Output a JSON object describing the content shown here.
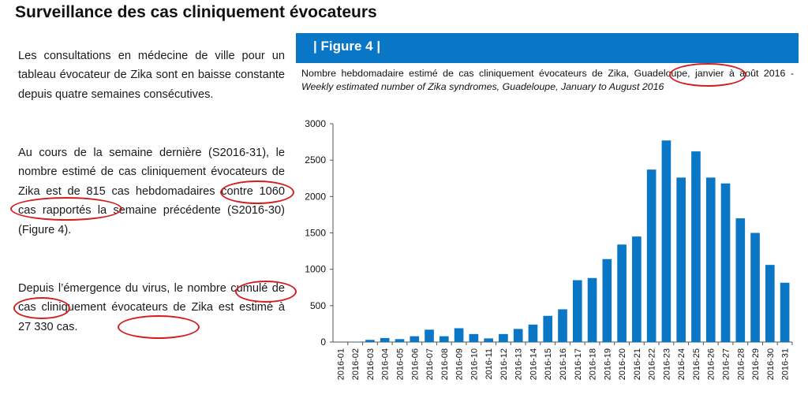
{
  "heading": "Surveillance des cas cliniquement évocateurs",
  "paragraphs": [
    "Les consultations en médecine de ville pour un tableau évocateur de Zika sont en baisse constante depuis quatre semaines consécutives.",
    "Au cours de la semaine dernière (S2016-31), le nombre estimé de cas cliniquement évocateurs de Zika est de 815 cas hebdomadaires contre 1060 cas rapportés la semaine précédente (S2016-30) (Figure 4).",
    "Depuis l’émergence du virus, le nombre cumulé de cas cliniquement évocateurs de Zika est estimé à 27 330 cas."
  ],
  "figure": {
    "label": "| Figure 4 |",
    "caption_fr": "Nombre hebdomadaire estimé de cas cliniquement évocateurs de Zika, Guadeloupe, janvier à août 2016 - ",
    "caption_en": "Weekly estimated number of Zika syndromes, Guadeloupe, January to August 2016"
  },
  "colors": {
    "banner": "#0a76c6",
    "bar": "#0a76c6",
    "annotation": "#d21e1e"
  },
  "chart_data": {
    "type": "bar",
    "categories": [
      "2016-01",
      "2016-02",
      "2016-03",
      "2016-04",
      "2016-05",
      "2016-06",
      "2016-07",
      "2016-08",
      "2016-09",
      "2016-10",
      "2016-11",
      "2016-12",
      "2016-13",
      "2016-14",
      "2016-15",
      "2016-16",
      "2016-17",
      "2016-18",
      "2016-19",
      "2016-20",
      "2016-21",
      "2016-22",
      "2016-23",
      "2016-24",
      "2016-25",
      "2016-26",
      "2016-27",
      "2016-28",
      "2016-29",
      "2016-30",
      "2016-31"
    ],
    "values": [
      0,
      5,
      30,
      55,
      40,
      80,
      170,
      80,
      190,
      110,
      50,
      110,
      180,
      240,
      360,
      450,
      850,
      880,
      1140,
      1340,
      1450,
      2370,
      2770,
      2260,
      2620,
      2260,
      2180,
      1700,
      1500,
      1060,
      815
    ],
    "ylim": [
      0,
      3000
    ],
    "yticks": [
      0,
      500,
      1000,
      1500,
      2000,
      2500,
      3000
    ],
    "grid": false
  }
}
